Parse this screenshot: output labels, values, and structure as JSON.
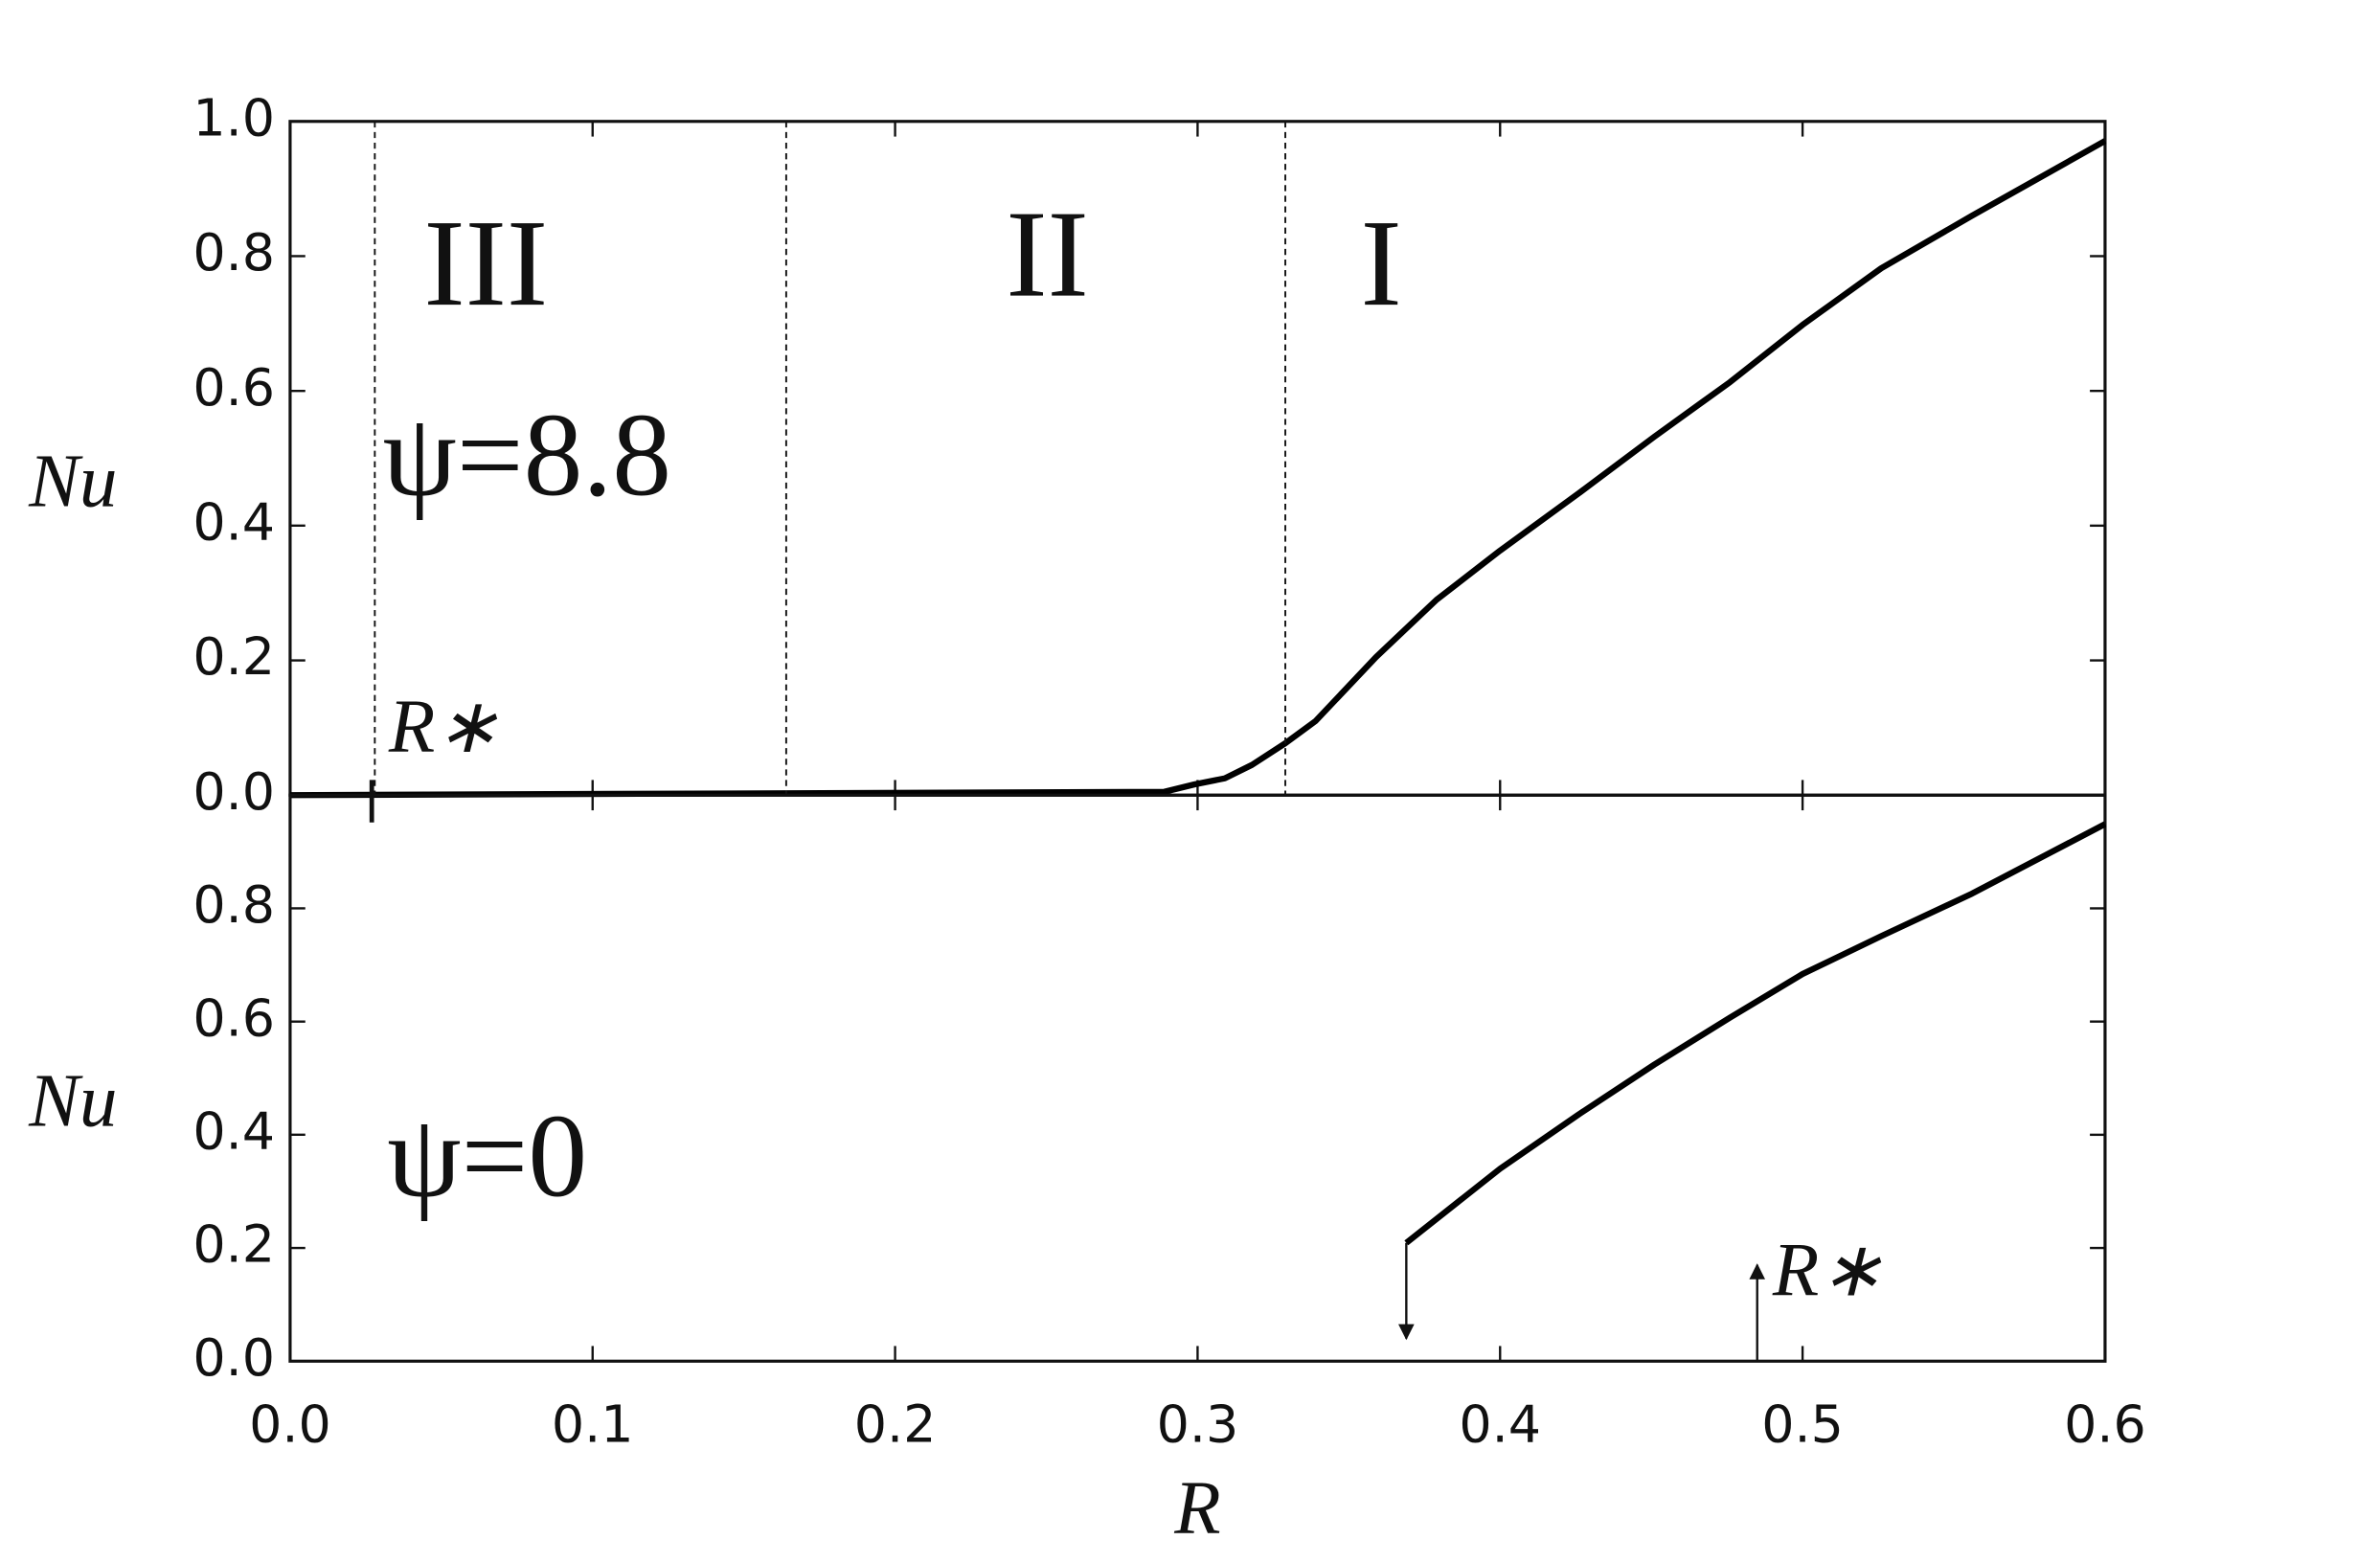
{
  "chart_data": [
    {
      "type": "line",
      "y_label": "Nu",
      "xlim": [
        0,
        0.6
      ],
      "ylim": [
        0,
        1.0
      ],
      "yticks": [
        {
          "value": 0,
          "label": "0.0"
        },
        0.2,
        0.4,
        0.6,
        0.8,
        {
          "value": 1.0,
          "label": "1.0"
        }
      ],
      "series": [
        {
          "color": "#000000",
          "x": [
            0,
            0.289,
            0.299,
            0.309,
            0.318,
            0.329,
            0.339,
            0.359,
            0.379,
            0.4,
            0.426,
            0.451,
            0.476,
            0.5,
            0.526,
            0.556,
            0.6
          ],
          "y": [
            0,
            0.005,
            0.016,
            0.025,
            0.045,
            0.077,
            0.11,
            0.205,
            0.29,
            0.363,
            0.448,
            0.532,
            0.613,
            0.698,
            0.782,
            0.86,
            0.971
          ]
        }
      ],
      "region_boundaries": [
        0.028,
        0.164,
        0.329
      ],
      "region_labels": [
        "III",
        "II",
        "I"
      ],
      "annotation": "ψ=8.8",
      "marker_label": "R∗",
      "marker_x": 0.027
    },
    {
      "type": "line",
      "x_label": "R",
      "y_label": "Nu",
      "xlim": [
        0,
        0.6
      ],
      "ylim": [
        0,
        1.0
      ],
      "xticks": [
        {
          "value": 0,
          "label": "0.0"
        },
        0.1,
        0.2,
        0.3,
        0.4,
        0.5,
        0.6
      ],
      "yticks": [
        {
          "value": 0,
          "label": "0.0"
        },
        0.2,
        0.4,
        0.6,
        0.8
      ],
      "series": [
        {
          "color": "#000000",
          "x": [
            0.369,
            0.4,
            0.426,
            0.451,
            0.476,
            0.5,
            0.526,
            0.556,
            0.6
          ],
          "y": [
            0.209,
            0.34,
            0.436,
            0.524,
            0.607,
            0.684,
            0.751,
            0.826,
            0.949
          ]
        }
      ],
      "annotation": "ψ=0",
      "marker_label": "R∗",
      "arrows": [
        {
          "x": 0.369,
          "from": 0.209,
          "to": 0.04
        },
        {
          "x": 0.485,
          "from": 0,
          "to": 0.17
        }
      ]
    }
  ]
}
